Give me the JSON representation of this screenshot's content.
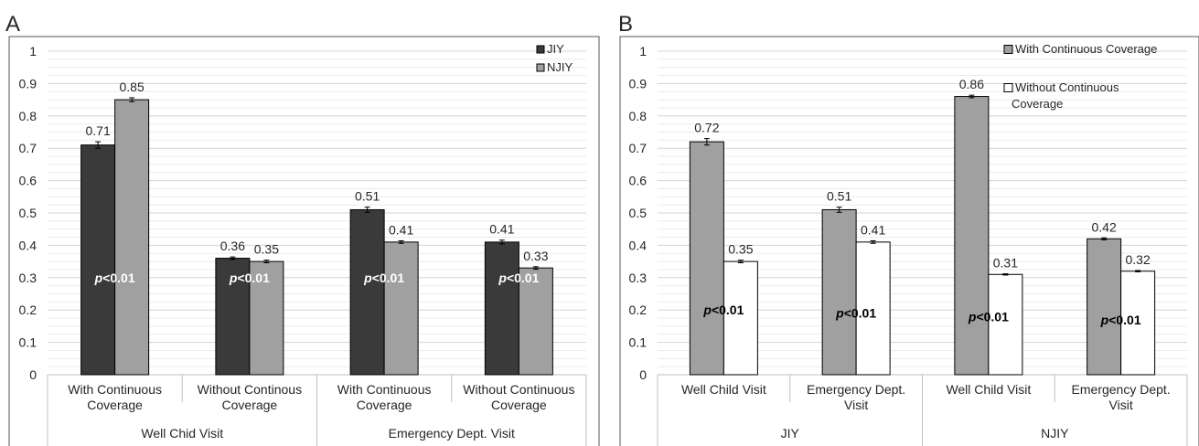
{
  "chart_data": [
    {
      "type": "bar",
      "panel_label": "A",
      "ylim": [
        0,
        1
      ],
      "yticks": [
        "0",
        "0.1",
        "0.2",
        "0.3",
        "0.4",
        "0.5",
        "0.6",
        "0.7",
        "0.8",
        "0.9",
        "1"
      ],
      "grid": true,
      "legend": "top-right",
      "categories": [
        [
          "With Continuous",
          "Coverage"
        ],
        [
          "Without Continous",
          "Coverage"
        ],
        [
          "With Continuous",
          "Coverage"
        ],
        [
          "Without Continuous",
          "Coverage"
        ]
      ],
      "groups": [
        "Well Chid Visit",
        "Emergency Dept. Visit"
      ],
      "series": [
        {
          "name": "JIY",
          "color": "#3a3a3a",
          "values": [
            0.71,
            0.36,
            0.51,
            0.41
          ],
          "labels": [
            "0.71",
            "0.36",
            "0.51",
            "0.41"
          ],
          "err": [
            0.01,
            0.004,
            0.008,
            0.006
          ]
        },
        {
          "name": "NJIY",
          "color": "#a0a0a0",
          "values": [
            0.85,
            0.35,
            0.41,
            0.33
          ],
          "labels": [
            "0.85",
            "0.35",
            "0.41",
            "0.33"
          ],
          "err": [
            0.006,
            0.004,
            0.004,
            0.004
          ]
        }
      ],
      "annotations": [
        "p<0.01",
        "p<0.01",
        "p<0.01",
        "p<0.01"
      ],
      "annotation_y": [
        0.3,
        0.3,
        0.3,
        0.3
      ],
      "annotation_color": "#ffffff"
    },
    {
      "type": "bar",
      "panel_label": "B",
      "ylim": [
        0,
        1
      ],
      "yticks": [
        "0",
        "0.1",
        "0.2",
        "0.3",
        "0.4",
        "0.5",
        "0.6",
        "0.7",
        "0.8",
        "0.9",
        "1"
      ],
      "grid": true,
      "legend": "top-right",
      "categories": [
        [
          "Well Child Visit"
        ],
        [
          "Emergency Dept.",
          "Visit"
        ],
        [
          "Well Child Visit"
        ],
        [
          "Emergency Dept.",
          "Visit"
        ]
      ],
      "groups": [
        "JIY",
        "NJIY"
      ],
      "series": [
        {
          "name": "With Continuous Coverage",
          "color": "#a0a0a0",
          "values": [
            0.72,
            0.51,
            0.86,
            0.42
          ],
          "labels": [
            "0.72",
            "0.51",
            "0.86",
            "0.42"
          ],
          "err": [
            0.01,
            0.008,
            0.004,
            0.003
          ]
        },
        {
          "name": [
            "Without Continuous",
            "Coverage"
          ],
          "color": "#ffffff",
          "values": [
            0.35,
            0.41,
            0.31,
            0.32
          ],
          "labels": [
            "0.35",
            "0.41",
            "0.31",
            "0.32"
          ],
          "err": [
            0.004,
            0.004,
            0.002,
            0.002
          ]
        }
      ],
      "annotations": [
        "p<0.01",
        "p<0.01",
        "p<0.01",
        "p<0.01"
      ],
      "annotation_y": [
        0.2,
        0.19,
        0.18,
        0.17
      ],
      "annotation_color": "#000000"
    }
  ]
}
